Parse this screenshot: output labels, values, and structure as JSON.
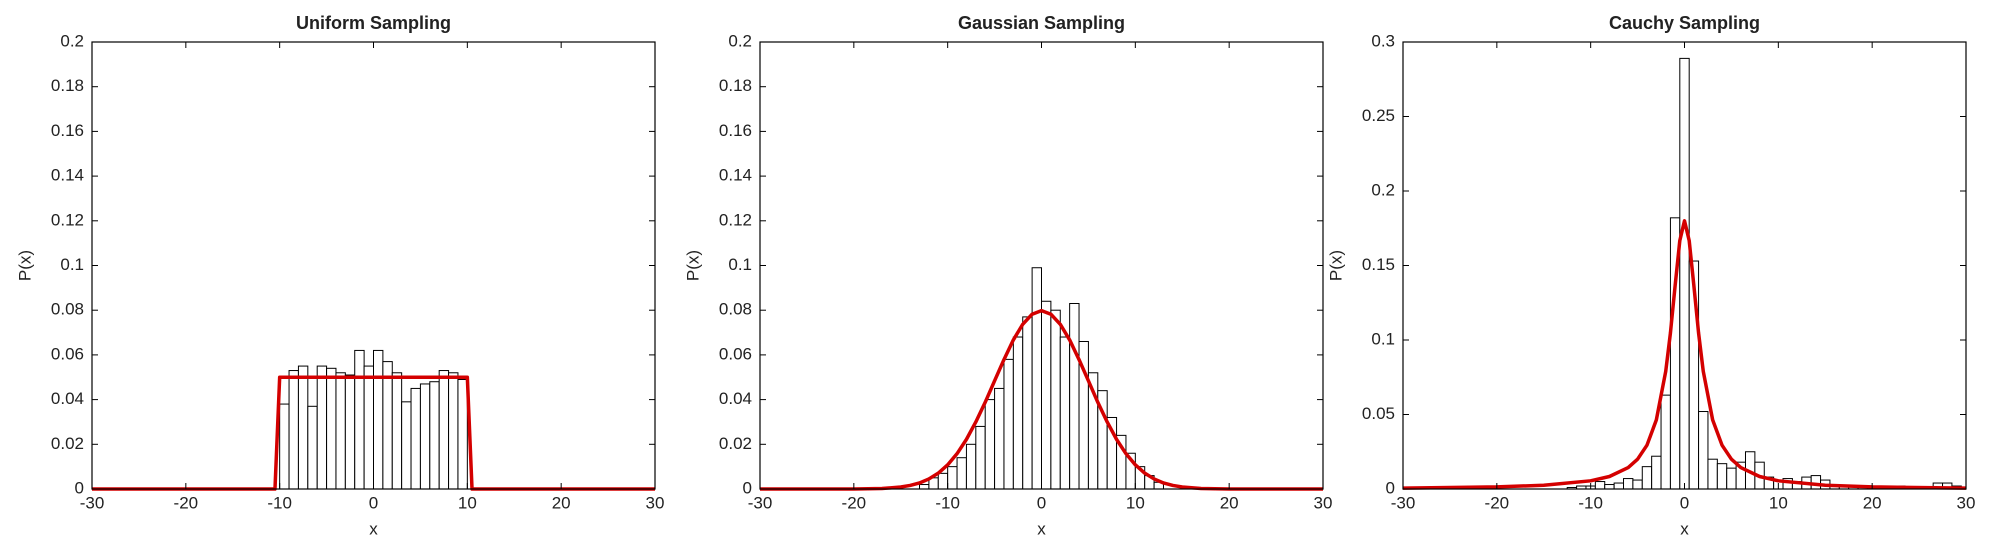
{
  "chart_data": [
    {
      "type": "histogram",
      "title": "Uniform Sampling",
      "xlabel": "x",
      "ylabel": "P(x)",
      "bins": [
        -10,
        -9,
        -8,
        -7,
        -6,
        -5,
        -4,
        -3,
        -2,
        -1,
        0,
        1,
        2,
        3,
        4,
        5,
        6,
        7,
        8,
        9,
        10
      ],
      "values": [
        0.038,
        0.053,
        0.055,
        0.037,
        0.055,
        0.054,
        0.052,
        0.051,
        0.062,
        0.055,
        0.062,
        0.057,
        0.052,
        0.039,
        0.045,
        0.047,
        0.048,
        0.053,
        0.052,
        0.049
      ],
      "bar_color": "#ffffff",
      "curve": {
        "x": [
          -30,
          -10.5,
          -10,
          10,
          10.5,
          30
        ],
        "values": [
          0,
          0,
          0.05,
          0.05,
          0,
          0
        ],
        "color": "#d40000"
      },
      "xlim": [
        -30,
        30
      ],
      "xticks": [
        -30,
        -20,
        -10,
        0,
        10,
        20,
        30
      ],
      "ylim": [
        0,
        0.2
      ],
      "yticks": [
        0,
        0.02,
        0.04,
        0.06,
        0.08,
        0.1,
        0.12,
        0.14,
        0.16,
        0.18,
        0.2
      ]
    },
    {
      "type": "histogram",
      "title": "Gaussian Sampling",
      "xlabel": "x",
      "ylabel": "P(x)",
      "bins": [
        -13,
        -12,
        -11,
        -10,
        -9,
        -8,
        -7,
        -6,
        -5,
        -4,
        -3,
        -2,
        -1,
        0,
        1,
        2,
        3,
        4,
        5,
        6,
        7,
        8,
        9,
        10,
        11,
        12,
        13
      ],
      "values": [
        0.002,
        0.005,
        0.007,
        0.01,
        0.014,
        0.02,
        0.028,
        0.04,
        0.045,
        0.058,
        0.068,
        0.077,
        0.099,
        0.084,
        0.08,
        0.068,
        0.083,
        0.066,
        0.052,
        0.044,
        0.032,
        0.024,
        0.016,
        0.01,
        0.006,
        0.003
      ],
      "bar_color": "#ffffff",
      "curve": {
        "x": [
          -30,
          -20,
          -17,
          -15,
          -14,
          -13,
          -12,
          -11,
          -10,
          -9,
          -8,
          -7,
          -6,
          -5,
          -4,
          -3,
          -2,
          -1,
          0,
          1,
          2,
          3,
          4,
          5,
          6,
          7,
          8,
          9,
          10,
          11,
          12,
          13,
          14,
          15,
          17,
          20,
          30
        ],
        "values": [
          0,
          0,
          0.0002,
          0.0009,
          0.0016,
          0.0027,
          0.0045,
          0.0071,
          0.0108,
          0.0158,
          0.0222,
          0.03,
          0.0388,
          0.0484,
          0.0579,
          0.0667,
          0.0737,
          0.0782,
          0.0798,
          0.0782,
          0.0737,
          0.0667,
          0.0579,
          0.0484,
          0.0388,
          0.03,
          0.0222,
          0.0158,
          0.0108,
          0.0071,
          0.0045,
          0.0027,
          0.0016,
          0.0009,
          0.0002,
          0,
          0
        ],
        "color": "#d40000"
      },
      "xlim": [
        -30,
        30
      ],
      "xticks": [
        -30,
        -20,
        -10,
        0,
        10,
        20,
        30
      ],
      "ylim": [
        0,
        0.2
      ],
      "yticks": [
        0,
        0.02,
        0.04,
        0.06,
        0.08,
        0.1,
        0.12,
        0.14,
        0.16,
        0.18,
        0.2
      ]
    },
    {
      "type": "histogram",
      "title": "Cauchy Sampling",
      "xlabel": "x",
      "ylabel": "P(x)",
      "bins": [
        -12.5,
        -11.5,
        -10.5,
        -9.5,
        -8.5,
        -7.5,
        -6.5,
        -5.5,
        -4.5,
        -3.5,
        -2.5,
        -1.5,
        -0.5,
        0.5,
        1.5,
        2.5,
        3.5,
        4.5,
        5.5,
        6.5,
        7.5,
        8.5,
        9.5,
        10.5,
        11.5,
        12.5,
        13.5,
        14.5,
        15.5,
        16.5,
        17.5,
        18.5,
        19.5,
        20.5,
        21.5,
        22.5,
        23.5,
        24.5,
        25.5,
        26.5,
        27.5,
        28.5,
        29.5
      ],
      "values": [
        0.001,
        0.002,
        0.002,
        0.005,
        0.003,
        0.004,
        0.007,
        0.006,
        0.015,
        0.022,
        0.063,
        0.182,
        0.289,
        0.153,
        0.052,
        0.02,
        0.017,
        0.014,
        0.018,
        0.025,
        0.018,
        0.008,
        0.006,
        0.007,
        0.005,
        0.008,
        0.009,
        0.006,
        0.003,
        0.002,
        0.002,
        0.001,
        0.002,
        0.001,
        0.002,
        0.002,
        0.001,
        0,
        0.001,
        0.004,
        0.004,
        0.002
      ],
      "bar_color": "#ffffff",
      "curve": {
        "x": [
          -30,
          -20,
          -15,
          -10,
          -8,
          -6,
          -5,
          -4,
          -3,
          -2,
          -1.5,
          -1,
          -0.5,
          0,
          0.5,
          1,
          1.5,
          2,
          3,
          4,
          5,
          6,
          8,
          10,
          15,
          20,
          30
        ],
        "values": [
          0.0006,
          0.0014,
          0.0025,
          0.0055,
          0.0084,
          0.0144,
          0.02,
          0.0294,
          0.0464,
          0.079,
          0.1047,
          0.1364,
          0.1667,
          0.18,
          0.1667,
          0.1364,
          0.1047,
          0.079,
          0.0464,
          0.0294,
          0.02,
          0.0144,
          0.0084,
          0.0055,
          0.0025,
          0.0014,
          0.0006
        ],
        "color": "#d40000"
      },
      "xlim": [
        -30,
        30
      ],
      "xticks": [
        -30,
        -20,
        -10,
        0,
        10,
        20,
        30
      ],
      "ylim": [
        0,
        0.3
      ],
      "yticks": [
        0,
        0.05,
        0.1,
        0.15,
        0.2,
        0.25,
        0.3
      ]
    }
  ]
}
